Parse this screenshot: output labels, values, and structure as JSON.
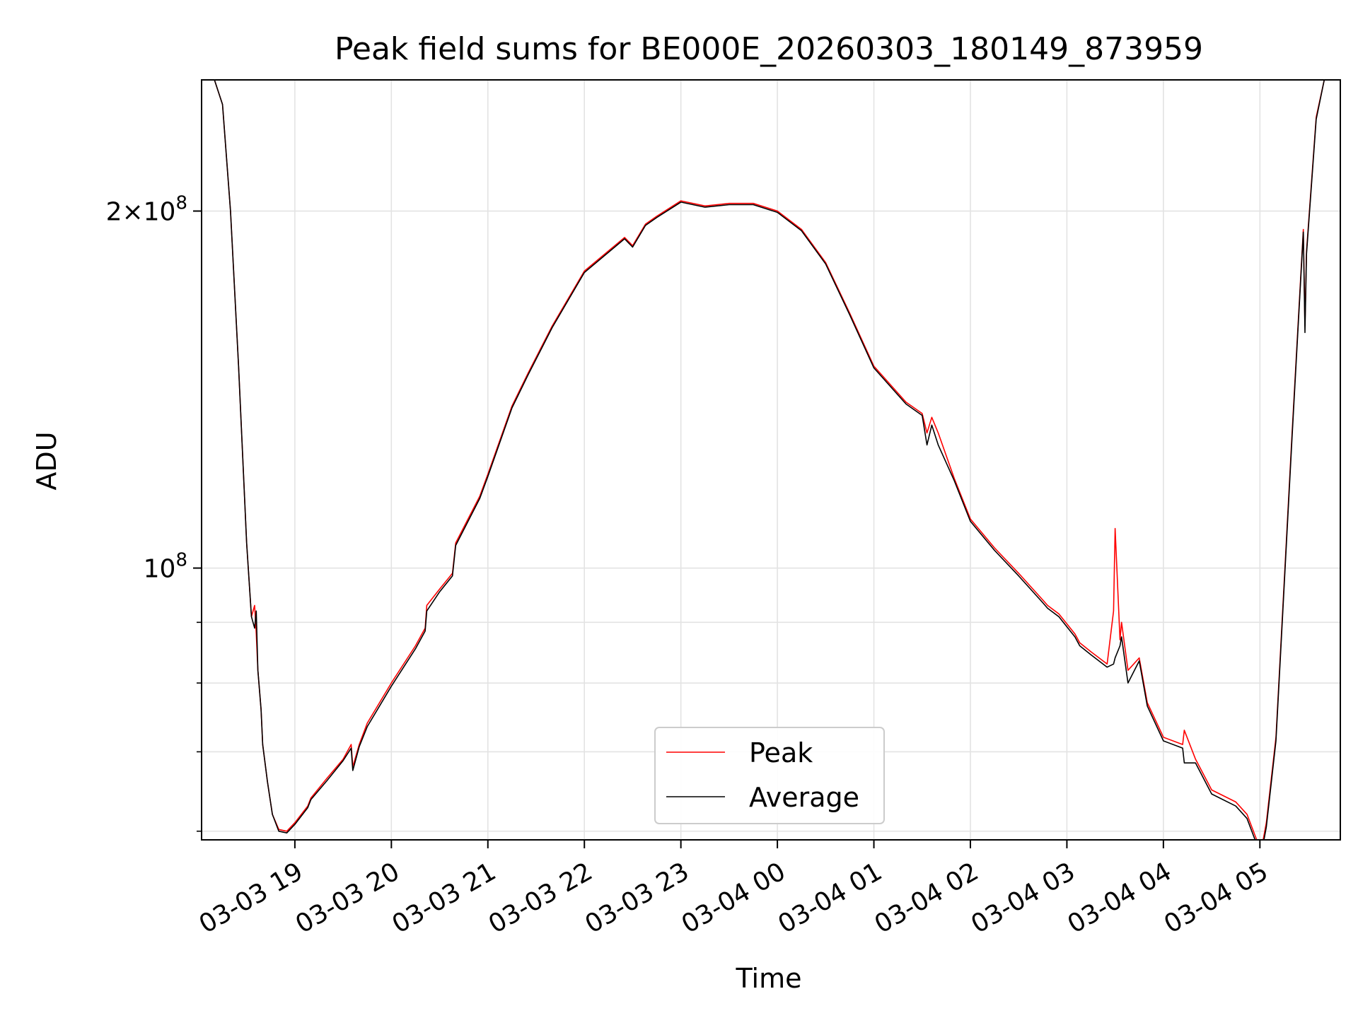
{
  "chart_data": {
    "type": "line",
    "title": "Peak field sums for BE000E_20260303_180149_873959",
    "xlabel": "Time",
    "ylabel": "ADU",
    "yscale": "log",
    "ylim": [
      59000000,
      258000000
    ],
    "xlim": [
      "03-03 18:02",
      "03-04 05:50"
    ],
    "grid": true,
    "legend_position": "lower center",
    "x_ticks": [
      "03-03 19",
      "03-03 20",
      "03-03 21",
      "03-03 22",
      "03-03 23",
      "03-04 00",
      "03-04 01",
      "03-04 02",
      "03-04 03",
      "03-04 04",
      "03-04 05"
    ],
    "x_tick_rotation": 30,
    "y_ticks_major": [
      {
        "value": 100000000,
        "mant": "",
        "exp": "8"
      },
      {
        "value": 200000000,
        "mant": "2",
        "exp": "8"
      }
    ],
    "y_ticks_minor": [
      60000000,
      70000000,
      80000000,
      90000000
    ],
    "series": [
      {
        "name": "Peak",
        "color": "#ff0000",
        "x": [
          "03-03 18:02",
          "03-03 18:10",
          "03-03 18:15",
          "03-03 18:20",
          "03-03 18:25",
          "03-03 18:30",
          "03-03 18:33",
          "03-03 18:35",
          "03-03 18:36",
          "03-03 18:37",
          "03-03 18:39",
          "03-03 18:40",
          "03-03 18:43",
          "03-03 18:46",
          "03-03 18:50",
          "03-03 18:55",
          "03-03 19:00",
          "03-03 19:08",
          "03-03 19:10",
          "03-03 19:20",
          "03-03 19:30",
          "03-03 19:35",
          "03-03 19:36",
          "03-03 19:40",
          "03-03 19:45",
          "03-03 20:00",
          "03-03 20:15",
          "03-03 20:21",
          "03-03 20:22",
          "03-03 20:30",
          "03-03 20:38",
          "03-03 20:40",
          "03-03 20:55",
          "03-03 21:00",
          "03-03 21:15",
          "03-03 21:25",
          "03-03 21:40",
          "03-03 22:00",
          "03-03 22:25",
          "03-03 22:30",
          "03-03 22:38",
          "03-03 22:45",
          "03-03 23:00",
          "03-03 23:15",
          "03-03 23:30",
          "03-03 23:45",
          "03-04 00:00",
          "03-04 00:15",
          "03-04 00:30",
          "03-04 00:45",
          "03-04 01:00",
          "03-04 01:20",
          "03-04 01:30",
          "03-04 01:33",
          "03-04 01:36",
          "03-04 01:40",
          "03-04 01:50",
          "03-04 02:00",
          "03-04 02:15",
          "03-04 02:30",
          "03-04 02:45",
          "03-04 02:48",
          "03-04 02:55",
          "03-04 03:05",
          "03-04 03:08",
          "03-04 03:15",
          "03-04 03:25",
          "03-04 03:29",
          "03-04 03:30",
          "03-04 03:33",
          "03-04 03:34",
          "03-04 03:38",
          "03-04 03:45",
          "03-04 03:50",
          "03-04 04:00",
          "03-04 04:12",
          "03-04 04:13",
          "03-04 04:20",
          "03-04 04:30",
          "03-04 04:45",
          "03-04 04:52",
          "03-04 04:58",
          "03-04 05:01",
          "03-04 05:04",
          "03-04 05:10",
          "03-04 05:20",
          "03-04 05:27",
          "03-04 05:28",
          "03-04 05:29",
          "03-04 05:35",
          "03-04 05:40",
          "03-04 05:50"
        ],
        "y": [
          258000000,
          258000000,
          246000000,
          200000000,
          148000000,
          105000000,
          91000000,
          93000000,
          88000000,
          82000000,
          76000000,
          71000000,
          66000000,
          62000000,
          60200000,
          60000000,
          61000000,
          63000000,
          64000000,
          66500000,
          69000000,
          71000000,
          68000000,
          71000000,
          74000000,
          80000000,
          86000000,
          89000000,
          93000000,
          96000000,
          99000000,
          105000000,
          115000000,
          120000000,
          137000000,
          146000000,
          160000000,
          178000000,
          190000000,
          187000000,
          195000000,
          198000000,
          204000000,
          202000000,
          203000000,
          203000000,
          200000000,
          193000000,
          181000000,
          164000000,
          148000000,
          138000000,
          135000000,
          130000000,
          134000000,
          130000000,
          119000000,
          110000000,
          104000000,
          99000000,
          94000000,
          93000000,
          91500000,
          88000000,
          86500000,
          85000000,
          83000000,
          92000000,
          108000000,
          87000000,
          90000000,
          82000000,
          84000000,
          77000000,
          72000000,
          71000000,
          73000000,
          69000000,
          65000000,
          63500000,
          62000000,
          59000000,
          58000000,
          61000000,
          72000000,
          130000000,
          193000000,
          160000000,
          185000000,
          240000000,
          258000000,
          258000000
        ]
      },
      {
        "name": "Average",
        "color": "#000000",
        "x": [
          "03-03 18:02",
          "03-03 18:10",
          "03-03 18:15",
          "03-03 18:20",
          "03-03 18:25",
          "03-03 18:30",
          "03-03 18:33",
          "03-03 18:35",
          "03-03 18:36",
          "03-03 18:37",
          "03-03 18:39",
          "03-03 18:40",
          "03-03 18:43",
          "03-03 18:46",
          "03-03 18:50",
          "03-03 18:55",
          "03-03 19:00",
          "03-03 19:08",
          "03-03 19:10",
          "03-03 19:20",
          "03-03 19:30",
          "03-03 19:35",
          "03-03 19:36",
          "03-03 19:40",
          "03-03 19:45",
          "03-03 20:00",
          "03-03 20:15",
          "03-03 20:21",
          "03-03 20:22",
          "03-03 20:30",
          "03-03 20:38",
          "03-03 20:40",
          "03-03 20:55",
          "03-03 21:00",
          "03-03 21:15",
          "03-03 21:25",
          "03-03 21:40",
          "03-03 22:00",
          "03-03 22:25",
          "03-03 22:30",
          "03-03 22:38",
          "03-03 22:45",
          "03-03 23:00",
          "03-03 23:15",
          "03-03 23:30",
          "03-03 23:45",
          "03-04 00:00",
          "03-04 00:15",
          "03-04 00:30",
          "03-04 00:45",
          "03-04 01:00",
          "03-04 01:20",
          "03-04 01:30",
          "03-04 01:33",
          "03-04 01:36",
          "03-04 01:40",
          "03-04 01:50",
          "03-04 02:00",
          "03-04 02:15",
          "03-04 02:30",
          "03-04 02:45",
          "03-04 02:48",
          "03-04 02:55",
          "03-04 03:05",
          "03-04 03:08",
          "03-04 03:15",
          "03-04 03:25",
          "03-04 03:29",
          "03-04 03:30",
          "03-04 03:33",
          "03-04 03:34",
          "03-04 03:38",
          "03-04 03:45",
          "03-04 03:50",
          "03-04 04:00",
          "03-04 04:12",
          "03-04 04:13",
          "03-04 04:20",
          "03-04 04:30",
          "03-04 04:45",
          "03-04 04:52",
          "03-04 04:58",
          "03-04 05:01",
          "03-04 05:04",
          "03-04 05:10",
          "03-04 05:20",
          "03-04 05:27",
          "03-04 05:28",
          "03-04 05:29",
          "03-04 05:35",
          "03-04 05:40",
          "03-04 05:50"
        ],
        "y": [
          258000000,
          258000000,
          246000000,
          200000000,
          148000000,
          105000000,
          91000000,
          89000000,
          92000000,
          82000000,
          76000000,
          71000000,
          66000000,
          62000000,
          60000000,
          59800000,
          60800000,
          62800000,
          63800000,
          66200000,
          68800000,
          70500000,
          67500000,
          70700000,
          73500000,
          79500000,
          85500000,
          88500000,
          92000000,
          95500000,
          98500000,
          104500000,
          114500000,
          119500000,
          136500000,
          145500000,
          159500000,
          177500000,
          189500000,
          186500000,
          194500000,
          197500000,
          203500000,
          201500000,
          202500000,
          202500000,
          199500000,
          192500000,
          180500000,
          163500000,
          147500000,
          137500000,
          134500000,
          127000000,
          132000000,
          127000000,
          118500000,
          109500000,
          103500000,
          98500000,
          93500000,
          92500000,
          91000000,
          87500000,
          86000000,
          84500000,
          82500000,
          83000000,
          84000000,
          86000000,
          87500000,
          80000000,
          83500000,
          76500000,
          71500000,
          70500000,
          68500000,
          68500000,
          64500000,
          63000000,
          61500000,
          58500000,
          57500000,
          60500000,
          71500000,
          129000000,
          192000000,
          158000000,
          184000000,
          239000000,
          258000000,
          258000000
        ]
      }
    ]
  }
}
